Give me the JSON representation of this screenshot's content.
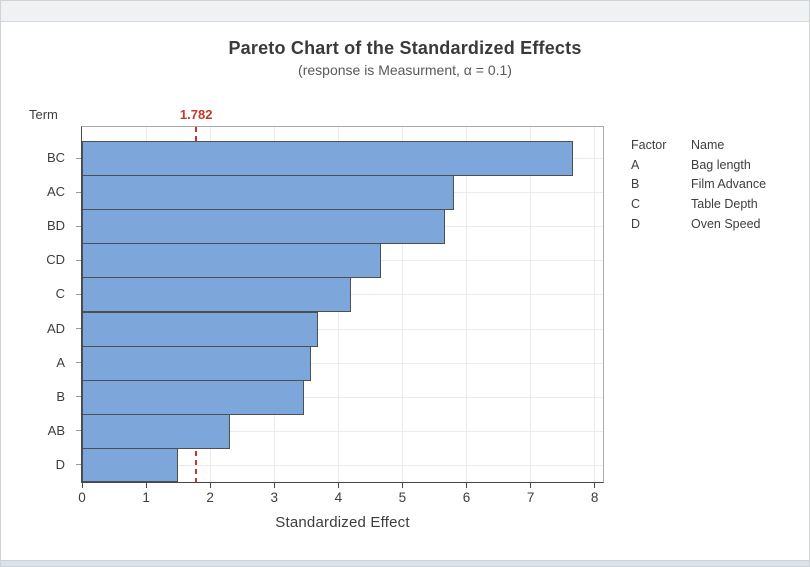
{
  "chart_data": {
    "type": "bar",
    "orientation": "horizontal",
    "title": "Pareto Chart of the Standardized Effects",
    "subtitle": "(response is Measurment, α = 0.1)",
    "xlabel": "Standardized Effect",
    "ylabel": "Term",
    "categories": [
      "BC",
      "AC",
      "BD",
      "CD",
      "C",
      "AD",
      "A",
      "B",
      "AB",
      "D"
    ],
    "values": [
      7.66,
      5.8,
      5.67,
      4.67,
      4.2,
      3.69,
      3.57,
      3.46,
      2.31,
      1.5
    ],
    "x_ticks": [
      0,
      1,
      2,
      3,
      4,
      5,
      6,
      7,
      8
    ],
    "xlim": [
      0,
      8.13
    ],
    "reference_line": {
      "value": 1.782,
      "label": "1.782"
    },
    "grid": "vertical-at-integer-ticks-and-horizontal-at-category-centers",
    "legend_position": "right",
    "bar_color": "#7da7db",
    "bar_border_color": "#4d4f52",
    "reference_color": "#c4392c"
  },
  "legend": {
    "headers": [
      "Factor",
      "Name"
    ],
    "rows": [
      {
        "factor": "A",
        "name": "Bag length"
      },
      {
        "factor": "B",
        "name": "Film Advance"
      },
      {
        "factor": "C",
        "name": "Table Depth"
      },
      {
        "factor": "D",
        "name": "Oven Speed"
      }
    ]
  }
}
